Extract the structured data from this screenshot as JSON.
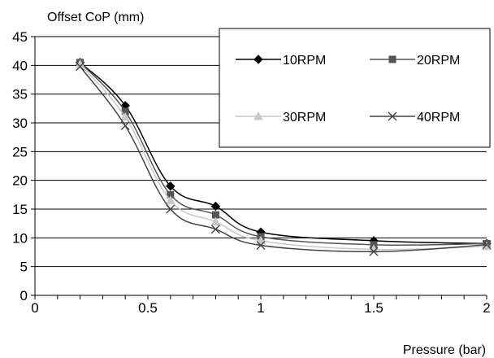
{
  "chart_data": {
    "type": "line",
    "ylabel": "Offset CoP (mm)",
    "xlabel": "Pressure (bar)",
    "xlim": [
      0,
      2
    ],
    "ylim": [
      0,
      45
    ],
    "xticks": [
      0,
      0.5,
      1,
      1.5,
      2
    ],
    "xtick_labels": [
      "0",
      "0.5",
      "1",
      "1.5",
      "2"
    ],
    "yticks": [
      0,
      5,
      10,
      15,
      20,
      25,
      30,
      35,
      40,
      45
    ],
    "ytick_labels": [
      "0",
      "5",
      "10",
      "15",
      "20",
      "25",
      "30",
      "35",
      "40",
      "45"
    ],
    "grid": "horizontal",
    "legend_position": "top-right",
    "x": [
      0.2,
      0.4,
      0.6,
      0.8,
      1.0,
      1.5,
      2.0
    ],
    "series": [
      {
        "name": "10RPM",
        "marker": "diamond",
        "color": "#000000",
        "values": [
          40.5,
          33.0,
          19.0,
          15.5,
          11.0,
          9.5,
          9.0
        ]
      },
      {
        "name": "20RPM",
        "marker": "square",
        "color": "#555555",
        "values": [
          40.5,
          32.0,
          17.5,
          14.0,
          10.2,
          8.8,
          9.0
        ]
      },
      {
        "name": "30RPM",
        "marker": "triangle",
        "color": "#c8c8c8",
        "values": [
          40.2,
          31.0,
          16.5,
          12.8,
          9.5,
          8.0,
          8.5
        ]
      },
      {
        "name": "40RPM",
        "marker": "x",
        "color": "#444444",
        "values": [
          39.8,
          29.5,
          15.0,
          11.5,
          8.7,
          7.6,
          8.8
        ]
      }
    ]
  }
}
